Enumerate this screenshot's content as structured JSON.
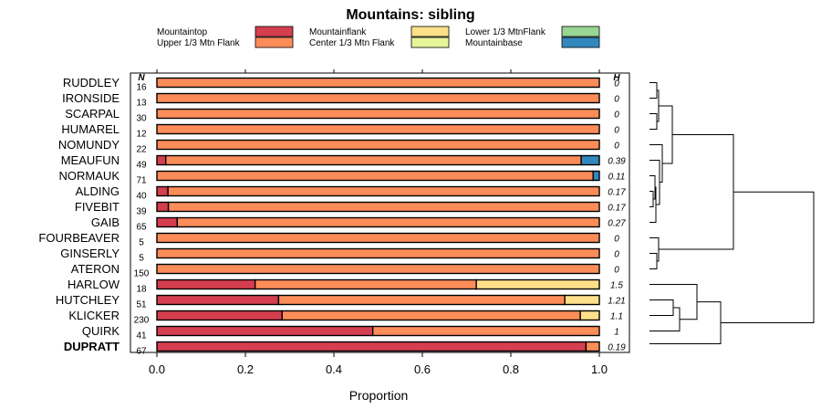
{
  "chart_data": {
    "type": "bar",
    "orientation": "horizontal",
    "stacked": true,
    "title": "Mountains: sibling",
    "xlabel": "Proportion",
    "xlim": [
      0,
      1
    ],
    "xticks": [
      "0.0",
      "0.2",
      "0.4",
      "0.6",
      "0.8",
      "1.0"
    ],
    "n_header": "N",
    "h_header": "H",
    "legend": [
      {
        "name": "Mountaintop",
        "color": "#d53e4f"
      },
      {
        "name": "Upper 1/3 Mtn Flank",
        "color": "#fc8d59"
      },
      {
        "name": "Mountainflank",
        "color": "#fee08b"
      },
      {
        "name": "Center 1/3 Mtn Flank",
        "color": "#e6f598"
      },
      {
        "name": "Lower 1/3 MtnFlank",
        "color": "#99d594"
      },
      {
        "name": "Mountainbase",
        "color": "#3288bd"
      }
    ],
    "categories": [
      "RUDDLEY",
      "IRONSIDE",
      "SCARPAL",
      "HUMAREL",
      "NOMUNDY",
      "MEAUFUN",
      "NORMAUK",
      "ALDING",
      "FIVEBIT",
      "GAIB",
      "FOURBEAVER",
      "GINSERLY",
      "ATERON",
      "HARLOW",
      "HUTCHLEY",
      "KLICKER",
      "QUIRK",
      "DUPRATT"
    ],
    "highlighted": "DUPRATT",
    "n": [
      "16",
      "13",
      "30",
      "12",
      "22",
      "49",
      "71",
      "40",
      "39",
      "65",
      "5",
      "5",
      "150",
      "18",
      "51",
      "230",
      "41",
      "67"
    ],
    "h": [
      "0",
      "0",
      "0",
      "0",
      "0",
      "0.39",
      "0.11",
      "0.17",
      "0.17",
      "0.27",
      "0",
      "0",
      "0",
      "1.5",
      "1.21",
      "1.1",
      "1",
      "0.19"
    ],
    "series": [
      {
        "name": "Mountaintop",
        "values": [
          0,
          0,
          0,
          0,
          0,
          0.02,
          0,
          0.025,
          0.026,
          0.046,
          0,
          0,
          0,
          0.222,
          0.275,
          0.283,
          0.488,
          0.97
        ]
      },
      {
        "name": "Upper 1/3 Mtn Flank",
        "values": [
          1,
          1,
          1,
          1,
          1,
          0.939,
          0.986,
          0.975,
          0.974,
          0.954,
          1,
          1,
          1,
          0.5,
          0.647,
          0.674,
          0.512,
          0.03
        ]
      },
      {
        "name": "Mountainflank",
        "values": [
          0,
          0,
          0,
          0,
          0,
          0,
          0,
          0,
          0,
          0,
          0,
          0,
          0,
          0.278,
          0.078,
          0.043,
          0,
          0
        ]
      },
      {
        "name": "Center 1/3 Mtn Flank",
        "values": [
          0,
          0,
          0,
          0,
          0,
          0,
          0,
          0,
          0,
          0,
          0,
          0,
          0,
          0,
          0,
          0,
          0,
          0
        ]
      },
      {
        "name": "Lower 1/3 MtnFlank",
        "values": [
          0,
          0,
          0,
          0,
          0,
          0,
          0,
          0,
          0,
          0,
          0,
          0,
          0,
          0,
          0,
          0,
          0,
          0
        ]
      },
      {
        "name": "Mountainbase",
        "values": [
          0,
          0,
          0,
          0,
          0,
          0.041,
          0.014,
          0,
          0,
          0,
          0,
          0,
          0,
          0,
          0,
          0,
          0,
          0
        ]
      }
    ],
    "dendrogram": "hierarchical clustering of the rows"
  }
}
